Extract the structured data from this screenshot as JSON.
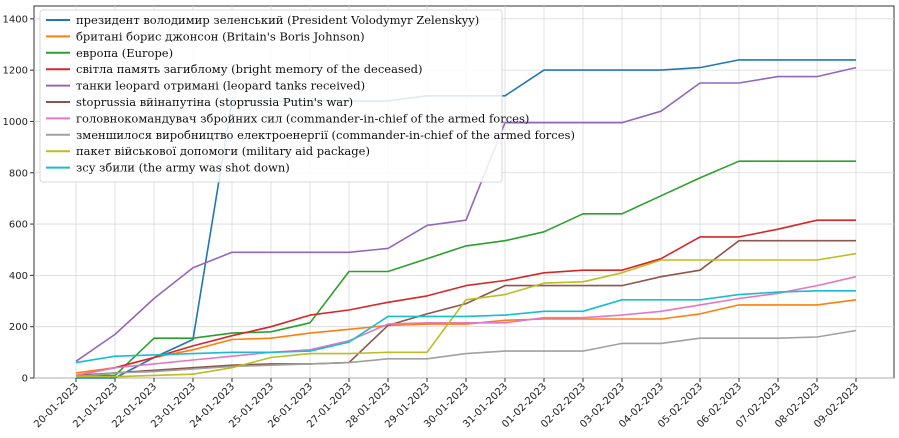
{
  "chart_data": {
    "type": "line",
    "title": "",
    "xlabel": "",
    "ylabel": "",
    "ylim": [
      0,
      1450
    ],
    "yticks": [
      0,
      200,
      400,
      600,
      800,
      1000,
      1200,
      1400
    ],
    "categories": [
      "20-01-2023",
      "21-01-2023",
      "22-01-2023",
      "23-01-2023",
      "24-01-2023",
      "25-01-2023",
      "26-01-2023",
      "27-01-2023",
      "28-01-2023",
      "29-01-2023",
      "30-01-2023",
      "31-01-2023",
      "01-02-2023",
      "02-02-2023",
      "03-02-2023",
      "04-02-2023",
      "05-02-2023",
      "06-02-2023",
      "07-02-2023",
      "08-02-2023",
      "09-02-2023"
    ],
    "grid": true,
    "legend_position": "top-left",
    "series": [
      {
        "name": "президент володимир зеленський (President Volodymyr Zelenskyy)",
        "color": "#1f77b4",
        "values": [
          0,
          0,
          80,
          150,
          1080,
          1080,
          1080,
          1080,
          1080,
          1100,
          1100,
          1100,
          1200,
          1200,
          1200,
          1200,
          1210,
          1240,
          1240,
          1240,
          1240
        ]
      },
      {
        "name": "британі борис джонсон  (Britain's Boris Johnson)",
        "color": "#ff7f0e",
        "values": [
          20,
          40,
          80,
          110,
          150,
          155,
          175,
          190,
          205,
          210,
          210,
          225,
          230,
          230,
          230,
          230,
          250,
          285,
          285,
          285,
          305
        ]
      },
      {
        "name": "европа (Europe)",
        "color": "#2ca02c",
        "values": [
          10,
          10,
          155,
          155,
          175,
          180,
          215,
          415,
          415,
          465,
          515,
          535,
          570,
          640,
          640,
          710,
          780,
          845,
          845,
          845,
          845
        ]
      },
      {
        "name": "світла память загиблому (bright memory of the deceased)",
        "color": "#d62728",
        "values": [
          10,
          40,
          80,
          125,
          165,
          200,
          245,
          265,
          295,
          320,
          360,
          380,
          410,
          420,
          420,
          465,
          550,
          550,
          580,
          615,
          615
        ]
      },
      {
        "name": "танки leopard отримані (leopard tanks received)",
        "color": "#9467bd",
        "values": [
          65,
          170,
          310,
          430,
          490,
          490,
          490,
          490,
          505,
          595,
          615,
          995,
          995,
          995,
          995,
          1040,
          1150,
          1150,
          1175,
          1175,
          1210
        ]
      },
      {
        "name": "stoprussia вйінапутіна (stoprussia Putin's war)",
        "color": "#8c564b",
        "values": [
          10,
          20,
          30,
          40,
          50,
          55,
          55,
          60,
          205,
          250,
          290,
          360,
          360,
          360,
          360,
          395,
          420,
          535,
          535,
          535,
          535
        ]
      },
      {
        "name": "головнокомандувач збройних сил (commander-in-chief of the armed forces)",
        "color": "#e377c2",
        "values": [
          10,
          40,
          55,
          70,
          85,
          100,
          110,
          145,
          210,
          215,
          215,
          215,
          235,
          235,
          245,
          260,
          285,
          310,
          330,
          360,
          395
        ]
      },
      {
        "name": "зменшилося виробництво електроенергії (commander-in-chief of the armed forces)",
        "color": "#a0a0a0",
        "values": [
          5,
          20,
          25,
          35,
          45,
          50,
          55,
          60,
          75,
          75,
          95,
          105,
          105,
          105,
          135,
          135,
          155,
          155,
          155,
          160,
          185
        ]
      },
      {
        "name": "пакет військової допомоги (military aid package)",
        "color": "#bcbd22",
        "values": [
          5,
          5,
          10,
          15,
          40,
          80,
          95,
          95,
          100,
          100,
          305,
          325,
          370,
          375,
          410,
          460,
          460,
          460,
          460,
          460,
          485
        ]
      },
      {
        "name": "зсу збили (the army was shot down)",
        "color": "#17becf",
        "values": [
          60,
          85,
          90,
          95,
          100,
          100,
          105,
          140,
          240,
          240,
          240,
          245,
          260,
          260,
          305,
          305,
          305,
          325,
          335,
          340,
          340
        ]
      }
    ]
  }
}
